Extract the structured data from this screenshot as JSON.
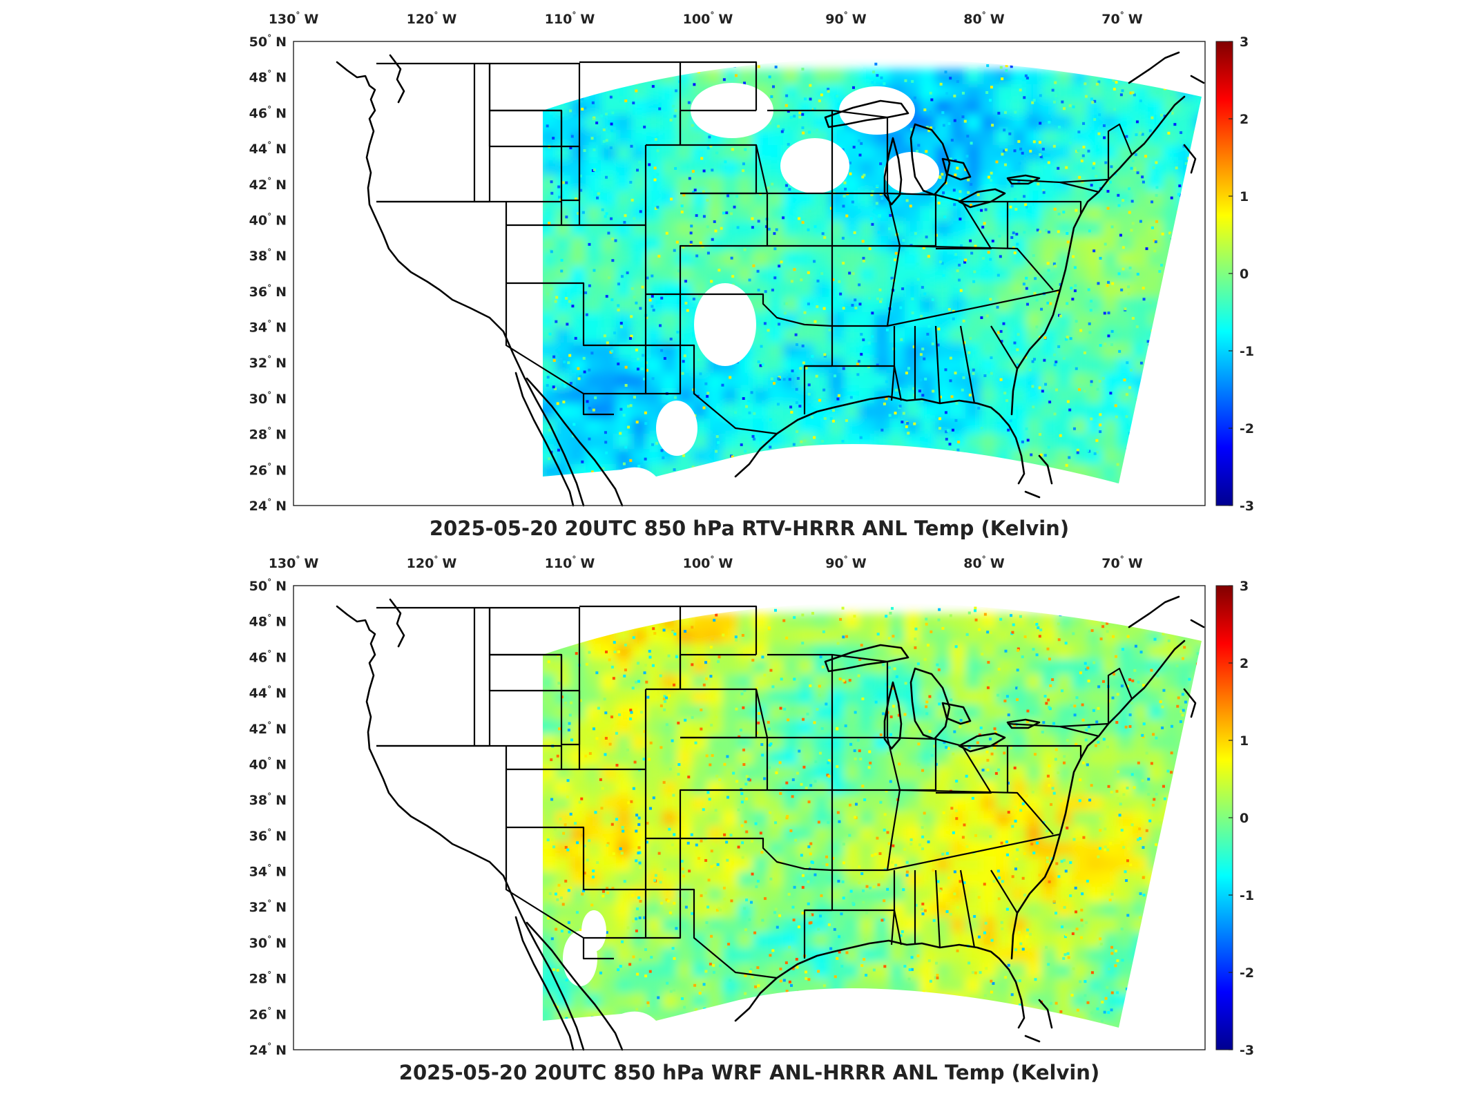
{
  "colors": {
    "colormap": [
      "#00008f",
      "#0000ff",
      "#0080ff",
      "#00ffff",
      "#80ff80",
      "#ffff00",
      "#ff8000",
      "#ff0000",
      "#800000"
    ],
    "land_missing": "#ffffff",
    "outline": "#000000"
  },
  "axes": {
    "lon_labels": [
      {
        "deg": "130",
        "hemi": "W",
        "lon": -130
      },
      {
        "deg": "120",
        "hemi": "W",
        "lon": -120
      },
      {
        "deg": "110",
        "hemi": "W",
        "lon": -110
      },
      {
        "deg": "100",
        "hemi": "W",
        "lon": -100
      },
      {
        "deg": "90",
        "hemi": "W",
        "lon": -90
      },
      {
        "deg": "80",
        "hemi": "W",
        "lon": -80
      },
      {
        "deg": "70",
        "hemi": "W",
        "lon": -70
      }
    ],
    "lat_labels": [
      {
        "deg": "50",
        "hemi": "N",
        "lat": 50
      },
      {
        "deg": "48",
        "hemi": "N",
        "lat": 48
      },
      {
        "deg": "46",
        "hemi": "N",
        "lat": 46
      },
      {
        "deg": "44",
        "hemi": "N",
        "lat": 44
      },
      {
        "deg": "42",
        "hemi": "N",
        "lat": 42
      },
      {
        "deg": "40",
        "hemi": "N",
        "lat": 40
      },
      {
        "deg": "38",
        "hemi": "N",
        "lat": 38
      },
      {
        "deg": "36",
        "hemi": "N",
        "lat": 36
      },
      {
        "deg": "34",
        "hemi": "N",
        "lat": 34
      },
      {
        "deg": "32",
        "hemi": "N",
        "lat": 32
      },
      {
        "deg": "30",
        "hemi": "N",
        "lat": 30
      },
      {
        "deg": "28",
        "hemi": "N",
        "lat": 28
      },
      {
        "deg": "26",
        "hemi": "N",
        "lat": 26
      },
      {
        "deg": "24",
        "hemi": "N",
        "lat": 24
      }
    ],
    "lon_range": [
      -130,
      -64
    ],
    "lat_range": [
      24,
      50
    ]
  },
  "colorbar": {
    "min": -3,
    "max": 3,
    "ticks": [
      "3",
      "2",
      "1",
      "0",
      "-1",
      "-2",
      "-3"
    ],
    "units_note": ""
  },
  "panels": [
    {
      "id": "top",
      "title": "2025-05-20 20UTC 850 hPa RTV-HRRR ANL Temp (Kelvin)",
      "field": "rtv-minus-hrrr",
      "bias": -0.55,
      "spread": 0.65
    },
    {
      "id": "bottom",
      "title": "2025-05-20 20UTC 850 hPa WRF ANL-HRRR ANL Temp (Kelvin)",
      "field": "wrf-minus-hrrr",
      "bias": 0.25,
      "spread": 0.75
    }
  ]
}
